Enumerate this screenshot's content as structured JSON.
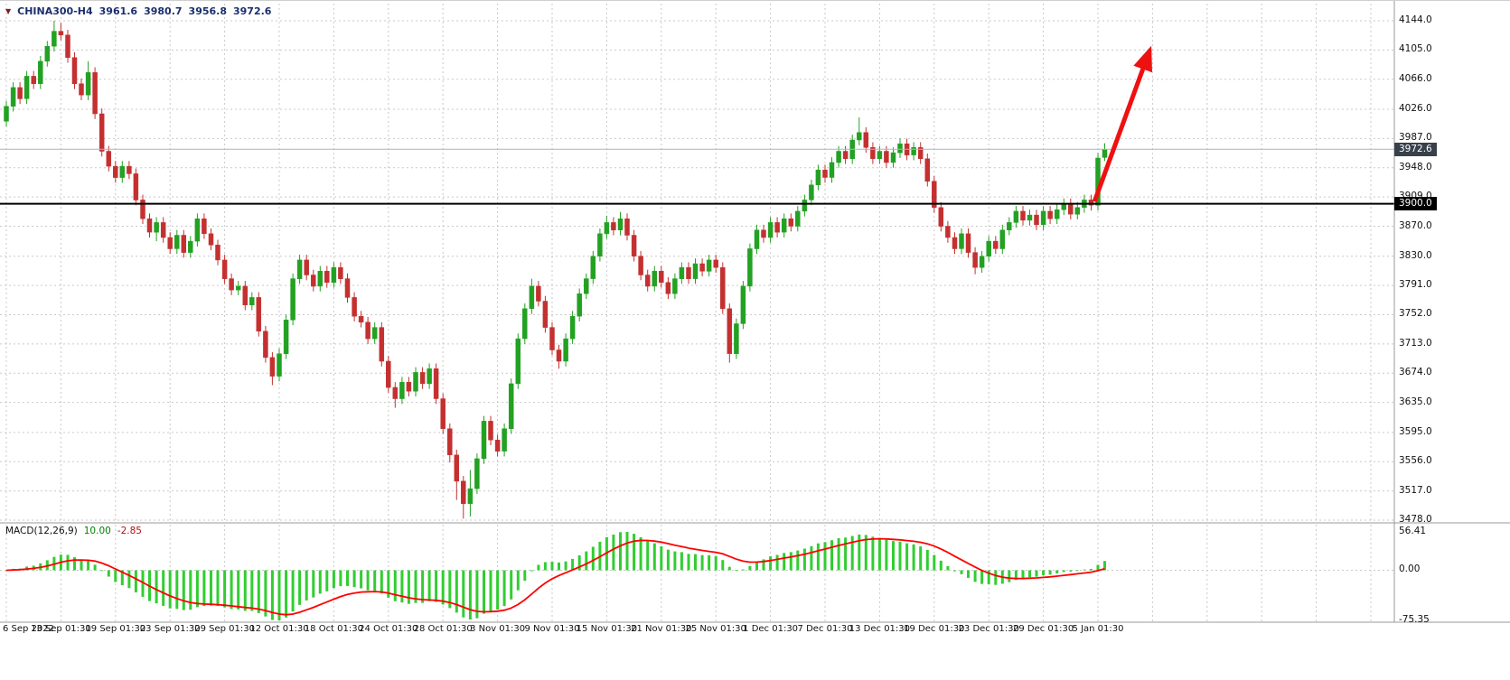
{
  "legend": {
    "marker": "▼",
    "symbol": "CHINA300-H4",
    "open": "3961.6",
    "high": "3980.7",
    "low": "3956.8",
    "close": "3972.6"
  },
  "price_axis": {
    "labels": [
      "4144.0",
      "4105.0",
      "4066.0",
      "4026.0",
      "3987.0",
      "3948.0",
      "3909.0",
      "3870.0",
      "3830.0",
      "3791.0",
      "3752.0",
      "3713.0",
      "3674.0",
      "3635.0",
      "3595.0",
      "3556.0",
      "3517.0",
      "3478.0"
    ],
    "current_price_tag": {
      "text": "3972.6",
      "value": 3972.6,
      "bg": "#38404a",
      "fg": "#ffffff"
    },
    "level_tag": {
      "text": "3900.0",
      "value": 3900.0,
      "bg": "#000000",
      "fg": "#ffffff"
    }
  },
  "time_axis": {
    "labels": [
      "6 Sep 2022",
      "13 Sep 01:30",
      "19 Sep 01:30",
      "23 Sep 01:30",
      "29 Sep 01:30",
      "12 Oct 01:30",
      "18 Oct 01:30",
      "24 Oct 01:30",
      "28 Oct 01:30",
      "3 Nov 01:30",
      "9 Nov 01:30",
      "15 Nov 01:30",
      "21 Nov 01:30",
      "25 Nov 01:30",
      "1 Dec 01:30",
      "7 Dec 01:30",
      "13 Dec 01:30",
      "19 Dec 01:30",
      "23 Dec 01:30",
      "29 Dec 01:30",
      "5 Jan 01:30"
    ]
  },
  "macd_panel": {
    "label": "MACD(12,26,9)",
    "value_main": "10.00",
    "value_signal": "-2.85",
    "axis_labels": [
      "56.41",
      "0.00",
      "-75.35"
    ],
    "axis_max": 56.41,
    "axis_min": -75.35,
    "histogram_color": "#32cd32",
    "signal_color": "#ff0000"
  },
  "colors": {
    "bull": "#22a122",
    "bear": "#c43030",
    "grid": "#c9c9c9",
    "separator": "#9a9a9a",
    "arrow": "#ee1111",
    "legend_text": "#1b2f6e"
  },
  "chart_data": {
    "type": "candlestick",
    "title": "CHINA300-H4",
    "symbol": "CHINA300",
    "timeframe": "H4",
    "ylim": [
      3478,
      4144
    ],
    "bars_per_gridline": 8,
    "macd_params": {
      "fast": 12,
      "slow": 26,
      "signal": 9
    },
    "levels": [
      {
        "name": "horizontal-line-3900",
        "value": 3900.0,
        "color": "#000000",
        "width": 2
      },
      {
        "name": "current-price-line",
        "value": 3972.6,
        "color": "#a9b4c0",
        "width": 1
      }
    ],
    "annotations": [
      {
        "type": "arrow",
        "color": "#ee1111",
        "from": {
          "bar": 159.5,
          "price": 3903
        },
        "to": {
          "bar": 167.6,
          "price": 4105
        }
      }
    ],
    "ohlc": [
      [
        4010,
        4037,
        4003,
        4030
      ],
      [
        4030,
        4062,
        4023,
        4055
      ],
      [
        4055,
        4062,
        4033,
        4040
      ],
      [
        4040,
        4077,
        4033,
        4070
      ],
      [
        4070,
        4077,
        4053,
        4060
      ],
      [
        4060,
        4097,
        4053,
        4090
      ],
      [
        4090,
        4117,
        4083,
        4110
      ],
      [
        4110,
        4144,
        4103,
        4130
      ],
      [
        4130,
        4141,
        4118,
        4125
      ],
      [
        4125,
        4132,
        4088,
        4095
      ],
      [
        4095,
        4102,
        4053,
        4060
      ],
      [
        4060,
        4067,
        4038,
        4045
      ],
      [
        4045,
        4090,
        4038,
        4075
      ],
      [
        4075,
        4082,
        4013,
        4020
      ],
      [
        4020,
        4027,
        3963,
        3970
      ],
      [
        3970,
        3977,
        3943,
        3950
      ],
      [
        3950,
        3957,
        3928,
        3935
      ],
      [
        3935,
        3957,
        3928,
        3950
      ],
      [
        3950,
        3957,
        3933,
        3940
      ],
      [
        3940,
        3947,
        3898,
        3905
      ],
      [
        3905,
        3912,
        3873,
        3880
      ],
      [
        3880,
        3887,
        3855,
        3862
      ],
      [
        3862,
        3882,
        3850,
        3875
      ],
      [
        3875,
        3882,
        3848,
        3855
      ],
      [
        3855,
        3862,
        3833,
        3840
      ],
      [
        3840,
        3865,
        3833,
        3858
      ],
      [
        3858,
        3865,
        3828,
        3835
      ],
      [
        3835,
        3857,
        3828,
        3850
      ],
      [
        3850,
        3887,
        3843,
        3880
      ],
      [
        3880,
        3887,
        3853,
        3860
      ],
      [
        3860,
        3867,
        3838,
        3845
      ],
      [
        3845,
        3852,
        3818,
        3825
      ],
      [
        3825,
        3832,
        3793,
        3800
      ],
      [
        3800,
        3807,
        3778,
        3785
      ],
      [
        3785,
        3797,
        3778,
        3790
      ],
      [
        3790,
        3797,
        3758,
        3765
      ],
      [
        3765,
        3782,
        3758,
        3775
      ],
      [
        3775,
        3782,
        3723,
        3730
      ],
      [
        3730,
        3737,
        3688,
        3695
      ],
      [
        3695,
        3702,
        3658,
        3670
      ],
      [
        3670,
        3707,
        3663,
        3700
      ],
      [
        3700,
        3752,
        3693,
        3745
      ],
      [
        3745,
        3807,
        3738,
        3800
      ],
      [
        3800,
        3832,
        3793,
        3825
      ],
      [
        3825,
        3832,
        3798,
        3805
      ],
      [
        3805,
        3812,
        3783,
        3790
      ],
      [
        3790,
        3817,
        3783,
        3810
      ],
      [
        3810,
        3817,
        3788,
        3795
      ],
      [
        3795,
        3822,
        3788,
        3815
      ],
      [
        3815,
        3822,
        3793,
        3800
      ],
      [
        3800,
        3807,
        3768,
        3775
      ],
      [
        3775,
        3782,
        3743,
        3750
      ],
      [
        3750,
        3757,
        3735,
        3742
      ],
      [
        3742,
        3749,
        3713,
        3720
      ],
      [
        3720,
        3742,
        3713,
        3735
      ],
      [
        3735,
        3742,
        3683,
        3690
      ],
      [
        3690,
        3697,
        3648,
        3655
      ],
      [
        3655,
        3662,
        3628,
        3640
      ],
      [
        3640,
        3669,
        3633,
        3662
      ],
      [
        3662,
        3669,
        3643,
        3650
      ],
      [
        3650,
        3682,
        3643,
        3675
      ],
      [
        3675,
        3682,
        3653,
        3660
      ],
      [
        3660,
        3687,
        3653,
        3680
      ],
      [
        3680,
        3687,
        3633,
        3640
      ],
      [
        3640,
        3647,
        3593,
        3600
      ],
      [
        3600,
        3607,
        3555,
        3565
      ],
      [
        3565,
        3572,
        3505,
        3530
      ],
      [
        3530,
        3537,
        3480,
        3500
      ],
      [
        3500,
        3545,
        3483,
        3520
      ],
      [
        3520,
        3567,
        3513,
        3560
      ],
      [
        3560,
        3617,
        3553,
        3610
      ],
      [
        3610,
        3617,
        3578,
        3585
      ],
      [
        3585,
        3592,
        3563,
        3570
      ],
      [
        3570,
        3607,
        3563,
        3600
      ],
      [
        3600,
        3667,
        3593,
        3660
      ],
      [
        3660,
        3727,
        3653,
        3720
      ],
      [
        3720,
        3767,
        3713,
        3760
      ],
      [
        3760,
        3800,
        3753,
        3790
      ],
      [
        3790,
        3797,
        3763,
        3770
      ],
      [
        3770,
        3777,
        3728,
        3735
      ],
      [
        3735,
        3742,
        3698,
        3705
      ],
      [
        3705,
        3712,
        3680,
        3690
      ],
      [
        3690,
        3727,
        3683,
        3720
      ],
      [
        3720,
        3757,
        3713,
        3750
      ],
      [
        3750,
        3787,
        3743,
        3780
      ],
      [
        3780,
        3807,
        3773,
        3800
      ],
      [
        3800,
        3837,
        3793,
        3830
      ],
      [
        3830,
        3867,
        3823,
        3860
      ],
      [
        3860,
        3884,
        3853,
        3875
      ],
      [
        3875,
        3882,
        3858,
        3865
      ],
      [
        3865,
        3889,
        3858,
        3880
      ],
      [
        3880,
        3887,
        3851,
        3858
      ],
      [
        3858,
        3865,
        3823,
        3830
      ],
      [
        3830,
        3837,
        3798,
        3805
      ],
      [
        3805,
        3812,
        3783,
        3790
      ],
      [
        3790,
        3817,
        3783,
        3810
      ],
      [
        3810,
        3817,
        3788,
        3795
      ],
      [
        3795,
        3802,
        3773,
        3780
      ],
      [
        3780,
        3807,
        3773,
        3800
      ],
      [
        3800,
        3822,
        3793,
        3815
      ],
      [
        3815,
        3822,
        3793,
        3800
      ],
      [
        3800,
        3827,
        3793,
        3820
      ],
      [
        3820,
        3827,
        3803,
        3810
      ],
      [
        3810,
        3832,
        3803,
        3825
      ],
      [
        3825,
        3832,
        3808,
        3815
      ],
      [
        3815,
        3822,
        3753,
        3760
      ],
      [
        3760,
        3767,
        3688,
        3700
      ],
      [
        3700,
        3747,
        3693,
        3740
      ],
      [
        3740,
        3797,
        3733,
        3790
      ],
      [
        3790,
        3847,
        3783,
        3840
      ],
      [
        3840,
        3872,
        3833,
        3865
      ],
      [
        3865,
        3872,
        3848,
        3855
      ],
      [
        3855,
        3882,
        3848,
        3875
      ],
      [
        3875,
        3882,
        3855,
        3862
      ],
      [
        3862,
        3887,
        3855,
        3880
      ],
      [
        3880,
        3887,
        3863,
        3870
      ],
      [
        3870,
        3897,
        3863,
        3890
      ],
      [
        3890,
        3912,
        3883,
        3905
      ],
      [
        3905,
        3932,
        3898,
        3925
      ],
      [
        3925,
        3952,
        3918,
        3945
      ],
      [
        3945,
        3952,
        3928,
        3935
      ],
      [
        3935,
        3962,
        3928,
        3955
      ],
      [
        3955,
        3977,
        3948,
        3970
      ],
      [
        3970,
        3977,
        3953,
        3960
      ],
      [
        3960,
        3992,
        3953,
        3985
      ],
      [
        3985,
        4015,
        3978,
        3995
      ],
      [
        3995,
        4002,
        3968,
        3975
      ],
      [
        3975,
        3982,
        3953,
        3960
      ],
      [
        3960,
        3977,
        3953,
        3970
      ],
      [
        3970,
        3977,
        3948,
        3955
      ],
      [
        3955,
        3975,
        3948,
        3968
      ],
      [
        3968,
        3987,
        3961,
        3980
      ],
      [
        3980,
        3987,
        3958,
        3965
      ],
      [
        3965,
        3982,
        3958,
        3975
      ],
      [
        3975,
        3982,
        3953,
        3960
      ],
      [
        3960,
        3967,
        3923,
        3930
      ],
      [
        3930,
        3937,
        3888,
        3895
      ],
      [
        3895,
        3902,
        3863,
        3870
      ],
      [
        3870,
        3877,
        3848,
        3855
      ],
      [
        3855,
        3862,
        3833,
        3840
      ],
      [
        3840,
        3867,
        3833,
        3860
      ],
      [
        3860,
        3867,
        3828,
        3835
      ],
      [
        3835,
        3842,
        3806,
        3815
      ],
      [
        3815,
        3837,
        3808,
        3830
      ],
      [
        3830,
        3857,
        3823,
        3850
      ],
      [
        3850,
        3857,
        3833,
        3840
      ],
      [
        3840,
        3872,
        3833,
        3865
      ],
      [
        3865,
        3882,
        3858,
        3875
      ],
      [
        3875,
        3897,
        3868,
        3890
      ],
      [
        3890,
        3897,
        3871,
        3878
      ],
      [
        3878,
        3892,
        3871,
        3885
      ],
      [
        3885,
        3892,
        3865,
        3872
      ],
      [
        3872,
        3897,
        3865,
        3890
      ],
      [
        3890,
        3897,
        3873,
        3880
      ],
      [
        3880,
        3899,
        3873,
        3892
      ],
      [
        3892,
        3907,
        3885,
        3900
      ],
      [
        3900,
        3907,
        3879,
        3886
      ],
      [
        3886,
        3902,
        3879,
        3895
      ],
      [
        3895,
        3912,
        3888,
        3905
      ],
      [
        3905,
        3912,
        3891,
        3898
      ],
      [
        3898,
        3968,
        3891,
        3961
      ],
      [
        3961.6,
        3980.7,
        3956.8,
        3972.6
      ]
    ]
  }
}
